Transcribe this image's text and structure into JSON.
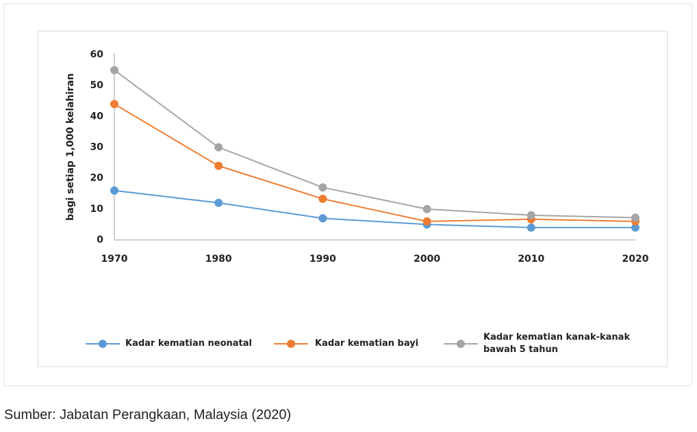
{
  "chart_data": {
    "type": "line",
    "y_label": "bagi setiap 1,000 kelahiran",
    "x": [
      1970,
      1980,
      1990,
      2000,
      2010,
      2020
    ],
    "xlim": [
      1970,
      2020
    ],
    "xticks": [
      1970,
      1980,
      1990,
      2000,
      2010,
      2020
    ],
    "ylim": [
      0,
      60
    ],
    "yticks": [
      0,
      10,
      20,
      30,
      40,
      50,
      60
    ],
    "legend": "bottom",
    "series": [
      {
        "name": "Kadar kematian neonatal",
        "color": "#5b9bd5",
        "values": [
          16,
          12,
          7,
          5,
          4,
          4
        ]
      },
      {
        "name": "Kadar kematian bayi",
        "color": "#ed7d31",
        "values": [
          44,
          24,
          13.3,
          6,
          6.7,
          6
        ]
      },
      {
        "name": "Kadar kematian kanak-kanak bawah 5 tahun",
        "color": "#a5a5a5",
        "values": [
          55,
          30,
          17,
          10,
          8,
          7.2
        ]
      }
    ],
    "source": "Sumber: Jabatan Perangkaan, Malaysia (2020)"
  }
}
